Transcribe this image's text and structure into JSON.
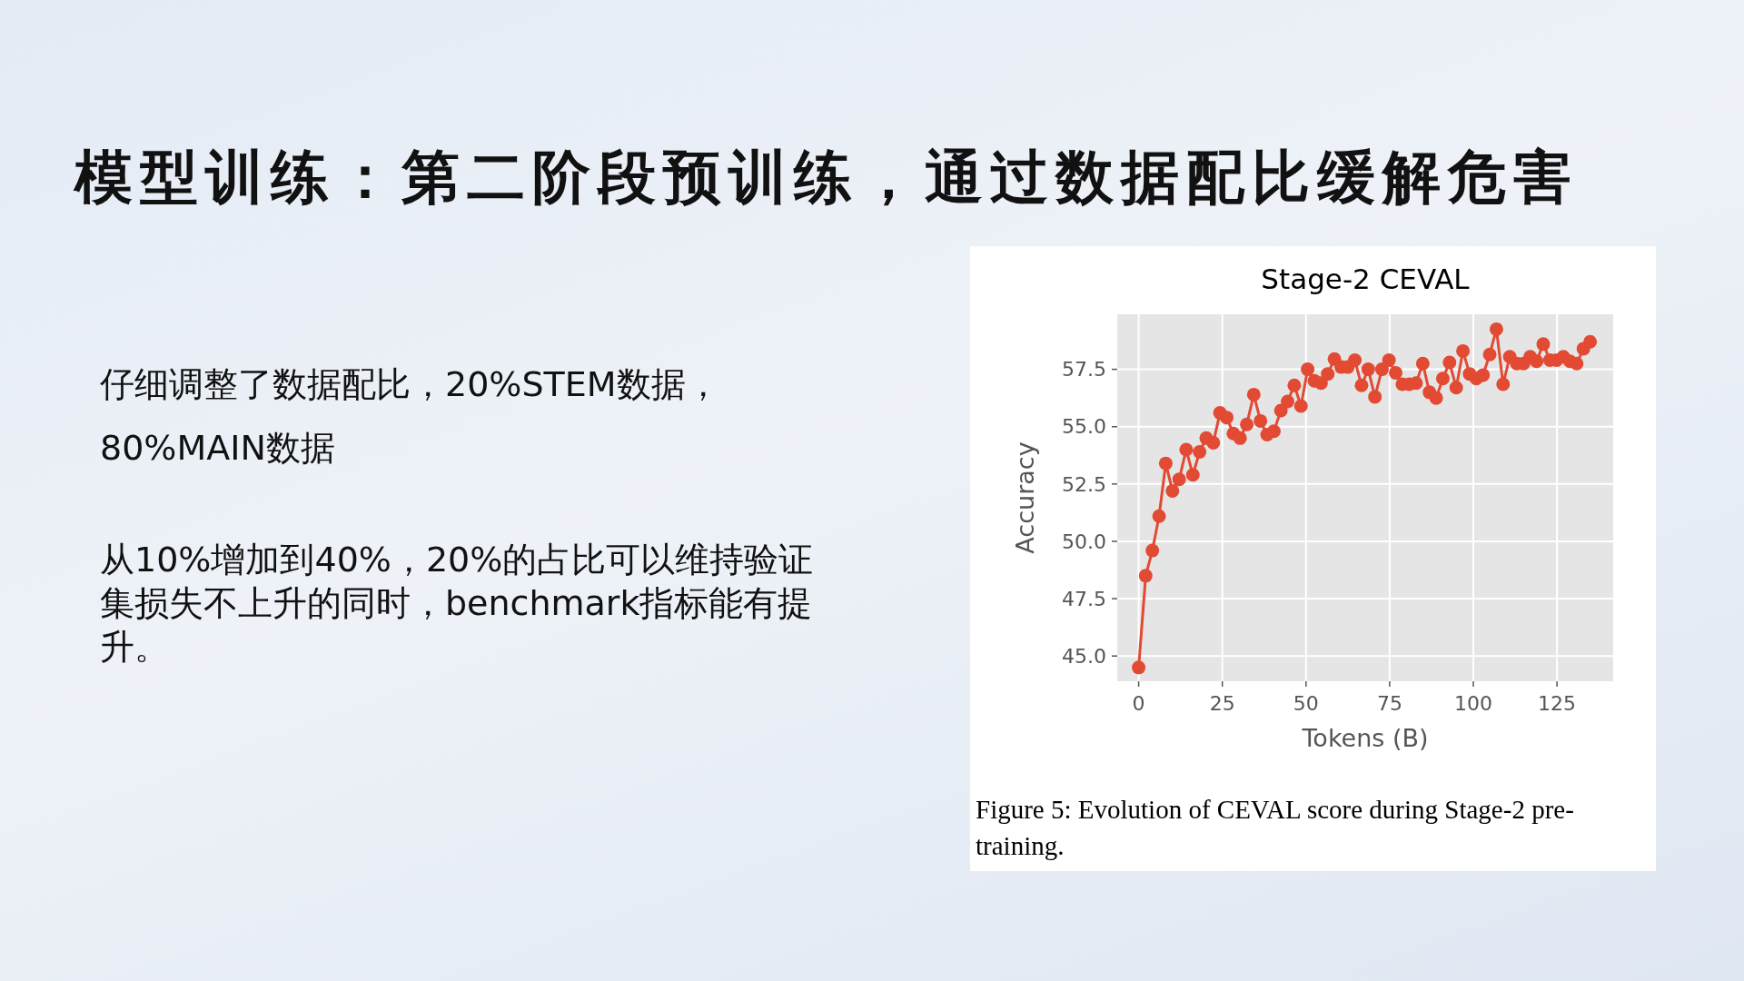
{
  "chart_data": {
    "type": "line",
    "title": "Stage-2 CEVAL",
    "xlabel": "Tokens (B)",
    "ylabel": "Accuracy",
    "annotations": [
      "模型训练：第二阶段预训练，通过数据配比缓解危害",
      "仔细调整了数据配比，20%STEM数据，80%MAIN数据",
      "从10%增加到40%，20%的占比可以维持验证集损失不上升的同时，benchmark指标能有提升。",
      "Figure 5: Evolution of CEVAL score during Stage-2 pre-training."
    ],
    "x": [
      0,
      2.1,
      4.1,
      6.1,
      8.1,
      10.1,
      12.1,
      14.2,
      16.2,
      18.2,
      20.2,
      22.3,
      24.3,
      26.3,
      28.3,
      30.3,
      32.3,
      34.4,
      36.4,
      38.4,
      40.4,
      42.5,
      44.5,
      46.5,
      48.5,
      50.5,
      52.5,
      54.5,
      56.5,
      58.5,
      60.5,
      62.5,
      64.6,
      66.6,
      68.6,
      70.6,
      72.7,
      74.8,
      76.8,
      78.8,
      80.9,
      82.9,
      84.9,
      86.9,
      88.9,
      90.9,
      92.9,
      94.9,
      96.9,
      98.9,
      100.9,
      102.9,
      104.9,
      106.9,
      108.9,
      110.9,
      113.0,
      115.0,
      117.0,
      118.9,
      120.9,
      122.9,
      124.9,
      126.9,
      128.9,
      130.9,
      132.9,
      134.9
    ],
    "series": [
      {
        "color": "#e24a33",
        "values": [
          44.5,
          48.5,
          49.6,
          51.1,
          53.4,
          52.2,
          52.7,
          54.0,
          52.9,
          53.9,
          54.5,
          54.3,
          55.6,
          55.4,
          54.7,
          54.5,
          55.1,
          56.4,
          55.25,
          54.65,
          54.8,
          55.7,
          56.1,
          56.8,
          55.9,
          57.5,
          57.0,
          56.9,
          57.3,
          57.95,
          57.6,
          57.6,
          57.9,
          56.8,
          57.5,
          56.3,
          57.5,
          57.9,
          57.35,
          56.85,
          56.85,
          56.9,
          57.75,
          56.5,
          56.25,
          57.1,
          57.8,
          56.7,
          58.3,
          57.3,
          57.1,
          57.25,
          58.15,
          59.25,
          56.85,
          58.05,
          57.75,
          57.75,
          58.05,
          57.85,
          58.6,
          57.9,
          57.9,
          58.05,
          57.85,
          57.75,
          58.4,
          58.7
        ]
      }
    ],
    "xlim": [
      -6.4,
      141.8
    ],
    "ylim": [
      43.9,
      59.9
    ],
    "xticks": [
      0,
      25,
      50,
      75,
      100,
      125
    ],
    "yticks": [
      {
        "value": 45,
        "label": "45.0"
      },
      {
        "value": 47.5,
        "label": "47.5"
      },
      {
        "value": 50,
        "label": "50.0"
      },
      {
        "value": 52.5,
        "label": "52.5"
      },
      {
        "value": 55,
        "label": "55.0"
      },
      {
        "value": 57.5,
        "label": "57.5"
      }
    ],
    "grid": true,
    "marker": "circle",
    "line_style": "solid"
  }
}
